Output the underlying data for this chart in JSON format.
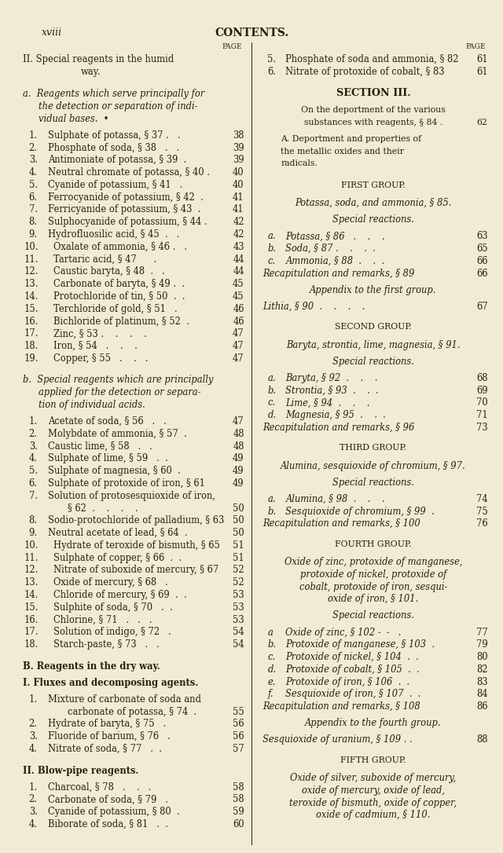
{
  "bg_color": "#f0ecd4",
  "text_color": "#2a1f0a",
  "page_header_left": "xviii",
  "page_header_center": "CONTENTS.",
  "left_col": [
    {
      "type": "page_label"
    },
    {
      "type": "heading2",
      "text": "II. Special reagents in the humid"
    },
    {
      "type": "heading2c",
      "text": "way."
    },
    {
      "type": "blank"
    },
    {
      "type": "italic_indent",
      "text": "a.  Reagents which serve principally for"
    },
    {
      "type": "italic_indent2",
      "text": "the detection or separation of indi-"
    },
    {
      "type": "italic_indent2",
      "text": "vidual bases.  •"
    },
    {
      "type": "blank_small"
    },
    {
      "type": "item",
      "num": "1.",
      "text": "Sulphate of potassa, § 37 .   .",
      "page": "38"
    },
    {
      "type": "item",
      "num": "2.",
      "text": "Phosphate of soda, § 38   .   .",
      "page": "39"
    },
    {
      "type": "item",
      "num": "3.",
      "text": "Antimoniate of potassa, § 39  .",
      "page": "39"
    },
    {
      "type": "item",
      "num": "4.",
      "text": "Neutral chromate of potassa, § 40 .",
      "page": "40"
    },
    {
      "type": "item",
      "num": "5.",
      "text": "Cyanide of potassium, § 41   .",
      "page": "40"
    },
    {
      "type": "item",
      "num": "6.",
      "text": "Ferrocyanide of potassium, § 42  .",
      "page": "41"
    },
    {
      "type": "item",
      "num": "7.",
      "text": "Ferricyanide of potassium, § 43  .",
      "page": "41"
    },
    {
      "type": "item",
      "num": "8.",
      "text": "Sulphocyanide of potassium, § 44 .",
      "page": "42"
    },
    {
      "type": "item",
      "num": "9.",
      "text": "Hydrofluosilic acid, § 45  .   .",
      "page": "42"
    },
    {
      "type": "item",
      "num": "10.",
      "text": "Oxalate of ammonia, § 46 .   .",
      "page": "43"
    },
    {
      "type": "item",
      "num": "11.",
      "text": "Tartaric acid, § 47      .",
      "page": "44"
    },
    {
      "type": "item",
      "num": "12.",
      "text": "Caustic baryta, § 48  .   .",
      "page": "44"
    },
    {
      "type": "item",
      "num": "13.",
      "text": "Carbonate of baryta, § 49 .  .",
      "page": "45"
    },
    {
      "type": "item",
      "num": "14.",
      "text": "Protochloride of tin, § 50  .  .",
      "page": "45"
    },
    {
      "type": "item",
      "num": "15.",
      "text": "Terchloride of gold, § 51   .",
      "page": "46"
    },
    {
      "type": "item",
      "num": "16.",
      "text": "Bichloride of platinum, § 52  .",
      "page": "46"
    },
    {
      "type": "item",
      "num": "17.",
      "text": "Zinc, § 53 .    .    .    .",
      "page": "47"
    },
    {
      "type": "item",
      "num": "18.",
      "text": "Iron, § 54   .    .    .",
      "page": "47"
    },
    {
      "type": "item",
      "num": "19.",
      "text": "Copper, § 55   .    .   .",
      "page": "47"
    },
    {
      "type": "blank"
    },
    {
      "type": "italic_indent",
      "text": "b.  Special reagents which are principally"
    },
    {
      "type": "italic_indent2",
      "text": "applied for the detection or separa-"
    },
    {
      "type": "italic_indent2",
      "text": "tion of individual acids."
    },
    {
      "type": "blank_small"
    },
    {
      "type": "item",
      "num": "1.",
      "text": "Acetate of soda, § 56   .   .",
      "page": "47"
    },
    {
      "type": "item",
      "num": "2.",
      "text": "Molybdate of ammonia, § 57  .",
      "page": "48"
    },
    {
      "type": "item",
      "num": "3.",
      "text": "Caustic lime, § 58   .   .",
      "page": "48"
    },
    {
      "type": "item",
      "num": "4.",
      "text": "Sulphate of lime, § 59   .  .",
      "page": "49"
    },
    {
      "type": "item",
      "num": "5.",
      "text": "Sulphate of magnesia, § 60  .",
      "page": "49"
    },
    {
      "type": "item",
      "num": "6.",
      "text": "Sulphate of protoxide of iron, § 61",
      "page": "49"
    },
    {
      "type": "item2",
      "num": "7.",
      "text": "Solution of protosesquioxide of iron,"
    },
    {
      "type": "item2b",
      "text": "§ 62  .    .    .    .",
      "page": "50"
    },
    {
      "type": "item",
      "num": "8.",
      "text": "Sodio-protochloride of palladium, § 63",
      "page": "50"
    },
    {
      "type": "item",
      "num": "9.",
      "text": "Neutral acetate of lead, § 64  .",
      "page": "50"
    },
    {
      "type": "item",
      "num": "10.",
      "text": "Hydrate of teroxide of bismuth, § 65",
      "page": "51"
    },
    {
      "type": "item",
      "num": "11.",
      "text": "Sulphate of copper, § 66  .  .",
      "page": "51"
    },
    {
      "type": "item",
      "num": "12.",
      "text": "Nitrate of suboxide of mercury, § 67",
      "page": "52"
    },
    {
      "type": "item",
      "num": "13.",
      "text": "Oxide of mercury, § 68   .",
      "page": "52"
    },
    {
      "type": "item",
      "num": "14.",
      "text": "Chloride of mercury, § 69  .  .",
      "page": "53"
    },
    {
      "type": "item",
      "num": "15.",
      "text": "Sulphite of soda, § 70   .  .",
      "page": "53"
    },
    {
      "type": "item",
      "num": "16.",
      "text": "Chlorine, § 71   .   .   .",
      "page": "53"
    },
    {
      "type": "item",
      "num": "17.",
      "text": "Solution of indigo, § 72   .",
      "page": "54"
    },
    {
      "type": "item",
      "num": "18.",
      "text": "Starch-paste, § 73   .   .",
      "page": "54"
    },
    {
      "type": "blank"
    },
    {
      "type": "heading_bold",
      "text": "B. Reagents in the dry way."
    },
    {
      "type": "blank_small"
    },
    {
      "type": "heading_bold",
      "text": "I. Fluxes and decomposing agents."
    },
    {
      "type": "blank_small"
    },
    {
      "type": "item2",
      "num": "1.",
      "text": "Mixture of carbonate of soda and"
    },
    {
      "type": "item2b",
      "text": "carbonate of potassa, § 74  .",
      "page": "55"
    },
    {
      "type": "item",
      "num": "2.",
      "text": "Hydrate of baryta, § 75   .",
      "page": "56"
    },
    {
      "type": "item",
      "num": "3.",
      "text": "Fluoride of barium, § 76   .",
      "page": "56"
    },
    {
      "type": "item",
      "num": "4.",
      "text": "Nitrate of soda, § 77   .  .",
      "page": "57"
    },
    {
      "type": "blank"
    },
    {
      "type": "heading_bold",
      "text": "II. Blow-pipe reagents."
    },
    {
      "type": "blank_small"
    },
    {
      "type": "item",
      "num": "1.",
      "text": "Charcoal, § 78   .    .   .",
      "page": "58"
    },
    {
      "type": "item",
      "num": "2.",
      "text": "Carbonate of soda, § 79   .",
      "page": "58"
    },
    {
      "type": "item",
      "num": "3.",
      "text": "Cyanide of potassium, § 80  .",
      "page": "59"
    },
    {
      "type": "item",
      "num": "4.",
      "text": "Biborate of soda, § 81   .  .",
      "page": "60"
    }
  ],
  "right_col": [
    {
      "type": "page_label"
    },
    {
      "type": "item_r",
      "num": "5.",
      "text": "Phosphate of soda and ammonia, § 82",
      "page": "61"
    },
    {
      "type": "item_r",
      "num": "6.",
      "text": "Nitrate of protoxide of cobalt, § 83",
      "page": "61"
    },
    {
      "type": "blank"
    },
    {
      "type": "center_bold",
      "text": "SECTION III."
    },
    {
      "type": "blank_small"
    },
    {
      "type": "sc_center",
      "text": "On the deportment of the various"
    },
    {
      "type": "sc_center",
      "text": "substances with reagents, § 84 ."
    },
    {
      "type": "sc_center_pg",
      "text": "62"
    },
    {
      "type": "blank_small"
    },
    {
      "type": "sc_left",
      "text": "A. Deportment and properties of"
    },
    {
      "type": "sc_left",
      "text": "the metallic oxides and their"
    },
    {
      "type": "sc_left",
      "text": "radicals."
    },
    {
      "type": "blank"
    },
    {
      "type": "center_sc2",
      "text": "FIRST GROUP."
    },
    {
      "type": "blank_small"
    },
    {
      "type": "center_it",
      "text": "Potassa, soda, and ammonia, § 85."
    },
    {
      "type": "blank_small"
    },
    {
      "type": "center_it",
      "text": "Special reactions."
    },
    {
      "type": "blank_small"
    },
    {
      "type": "item_r_it",
      "num": "a.",
      "text": "Potassa, § 86   .    .    .",
      "page": "63"
    },
    {
      "type": "item_r_it",
      "num": "b.",
      "text": "Soda, § 87 .    .    .  .",
      "page": "65"
    },
    {
      "type": "item_r_it",
      "num": "c.",
      "text": "Ammonia, § 88  .    .  .",
      "page": "66"
    },
    {
      "type": "item_r_it2",
      "text": "Recapitulation and remarks, § 89",
      "page": "66"
    },
    {
      "type": "blank_small"
    },
    {
      "type": "center_it",
      "text": "Appendix to the first group."
    },
    {
      "type": "blank_small"
    },
    {
      "type": "item_r_it2",
      "text": "Lithia, § 90  .    .    .    .",
      "page": "67"
    },
    {
      "type": "blank"
    },
    {
      "type": "center_sc2",
      "text": "SECOND GROUP."
    },
    {
      "type": "blank_small"
    },
    {
      "type": "center_it",
      "text": "Baryta, strontia, lime, magnesia, § 91."
    },
    {
      "type": "blank_small"
    },
    {
      "type": "center_it",
      "text": "Special reactions."
    },
    {
      "type": "blank_small"
    },
    {
      "type": "item_r_it",
      "num": "a.",
      "text": "Baryta, § 92  .    .    .",
      "page": "68"
    },
    {
      "type": "item_r_it",
      "num": "b.",
      "text": "Strontia, § 93  .    .  .",
      "page": "69"
    },
    {
      "type": "item_r_it",
      "num": "c.",
      "text": "Lime, § 94  .    .    .",
      "page": "70"
    },
    {
      "type": "item_r_it",
      "num": "d.",
      "text": "Magnesia, § 95  .    .  .",
      "page": "71"
    },
    {
      "type": "item_r_it2",
      "text": "Recapitulation and remarks, § 96",
      "page": "73"
    },
    {
      "type": "blank"
    },
    {
      "type": "center_sc2",
      "text": "THIRD GROUP."
    },
    {
      "type": "blank_small"
    },
    {
      "type": "center_it",
      "text": "Alumina, sesquioxide of chromium, § 97."
    },
    {
      "type": "blank_small"
    },
    {
      "type": "center_it",
      "text": "Special reactions."
    },
    {
      "type": "blank_small"
    },
    {
      "type": "item_r_it",
      "num": "a.",
      "text": "Alumina, § 98  .    .    .",
      "page": "74"
    },
    {
      "type": "item_r_it",
      "num": "b.",
      "text": "Sesquioxide of chromium, § 99  .",
      "page": "75"
    },
    {
      "type": "item_r_it2",
      "text": "Recapitulation and remarks, § 100",
      "page": "76"
    },
    {
      "type": "blank"
    },
    {
      "type": "center_sc2",
      "text": "FOURTH GROUP."
    },
    {
      "type": "blank_small"
    },
    {
      "type": "center_it",
      "text": "Oxide of zinc, protoxide of manganese,"
    },
    {
      "type": "center_it",
      "text": "protoxide of nickel, protoxide of"
    },
    {
      "type": "center_it",
      "text": "cobalt, protoxide of iron, sesqui-"
    },
    {
      "type": "center_it",
      "text": "oxide of iron, § 101."
    },
    {
      "type": "blank_small"
    },
    {
      "type": "center_it",
      "text": "Special reactions."
    },
    {
      "type": "blank_small"
    },
    {
      "type": "item_r_it",
      "num": "a",
      "text": "Oxide of zinc, § 102 -  -   .",
      "page": "77"
    },
    {
      "type": "item_r_it",
      "num": "b.",
      "text": "Protoxide of manganese, § 103  .",
      "page": "79"
    },
    {
      "type": "item_r_it",
      "num": "c.",
      "text": "Protoxide of nickel, § 104  .  .",
      "page": "80"
    },
    {
      "type": "item_r_it",
      "num": "d.",
      "text": "Protoxide of cobalt, § 105  .  .",
      "page": "82"
    },
    {
      "type": "item_r_it",
      "num": "e.",
      "text": "Protoxide of iron, § 106  .  .",
      "page": "83"
    },
    {
      "type": "item_r_it",
      "num": "f.",
      "text": "Sesquioxide of iron, § 107  .  .",
      "page": "84"
    },
    {
      "type": "item_r_it2",
      "text": "Recapitulation and remarks, § 108",
      "page": "86"
    },
    {
      "type": "blank_small"
    },
    {
      "type": "center_it",
      "text": "Appendix to the fourth group."
    },
    {
      "type": "blank_small"
    },
    {
      "type": "item_r_it2",
      "text": "Sesquioxide of uranium, § 109 . .",
      "page": "88"
    },
    {
      "type": "blank"
    },
    {
      "type": "center_sc2",
      "text": "FIFTH GROUP."
    },
    {
      "type": "blank_small"
    },
    {
      "type": "center_it",
      "text": "Oxide of silver, suboxide of mercury,"
    },
    {
      "type": "center_it",
      "text": "oxide of mercury, oxide of lead,"
    },
    {
      "type": "center_it",
      "text": "teroxide of bismuth, oxide of copper,"
    },
    {
      "type": "center_it",
      "text": "oxide of cadmium, § 110."
    }
  ]
}
